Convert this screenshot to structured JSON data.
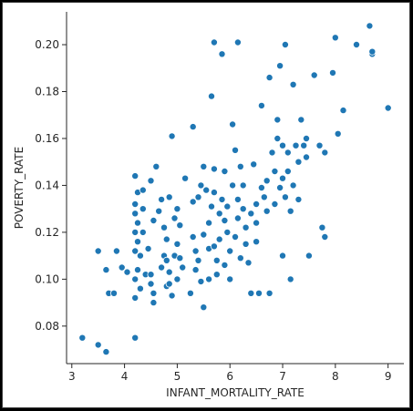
{
  "chart_data": {
    "type": "scatter",
    "title": "",
    "xlabel": "INFANT_MORTALITY_RATE",
    "ylabel": "POVERTY_RATE",
    "xlim": [
      2.9,
      9.3
    ],
    "ylim": [
      0.064,
      0.214
    ],
    "xticks": [
      3,
      4,
      5,
      6,
      7,
      8,
      9
    ],
    "yticks": [
      0.08,
      0.1,
      0.12,
      0.14,
      0.16,
      0.18,
      0.2
    ],
    "ytick_labels": [
      "0.08",
      "0.10",
      "0.12",
      "0.14",
      "0.16",
      "0.18",
      "0.20"
    ],
    "grid": false,
    "legend": "none",
    "color": "#1f77b4",
    "points": [
      [
        3.2,
        0.075
      ],
      [
        3.5,
        0.072
      ],
      [
        3.65,
        0.069
      ],
      [
        3.5,
        0.112
      ],
      [
        3.65,
        0.104
      ],
      [
        3.7,
        0.094
      ],
      [
        3.8,
        0.094
      ],
      [
        3.85,
        0.112
      ],
      [
        3.95,
        0.105
      ],
      [
        4.05,
        0.103
      ],
      [
        4.2,
        0.075
      ],
      [
        4.2,
        0.092
      ],
      [
        4.2,
        0.1
      ],
      [
        4.25,
        0.104
      ],
      [
        4.2,
        0.112
      ],
      [
        4.25,
        0.116
      ],
      [
        4.2,
        0.12
      ],
      [
        4.25,
        0.124
      ],
      [
        4.2,
        0.128
      ],
      [
        4.2,
        0.132
      ],
      [
        4.25,
        0.137
      ],
      [
        4.2,
        0.144
      ],
      [
        4.35,
        0.13
      ],
      [
        4.35,
        0.138
      ],
      [
        4.3,
        0.11
      ],
      [
        4.35,
        0.12
      ],
      [
        4.3,
        0.096
      ],
      [
        4.4,
        0.102
      ],
      [
        4.5,
        0.098
      ],
      [
        4.45,
        0.113
      ],
      [
        4.55,
        0.094
      ],
      [
        4.55,
        0.09
      ],
      [
        4.5,
        0.102
      ],
      [
        4.55,
        0.125
      ],
      [
        4.5,
        0.142
      ],
      [
        4.6,
        0.148
      ],
      [
        4.65,
        0.129
      ],
      [
        4.7,
        0.105
      ],
      [
        4.7,
        0.134
      ],
      [
        4.75,
        0.122
      ],
      [
        4.75,
        0.11
      ],
      [
        4.8,
        0.097
      ],
      [
        4.8,
        0.108
      ],
      [
        4.85,
        0.103
      ],
      [
        4.8,
        0.117
      ],
      [
        4.85,
        0.098
      ],
      [
        4.9,
        0.093
      ],
      [
        4.85,
        0.135
      ],
      [
        4.9,
        0.161
      ],
      [
        4.95,
        0.11
      ],
      [
        5.0,
        0.13
      ],
      [
        5.0,
        0.115
      ],
      [
        4.95,
        0.126
      ],
      [
        5.05,
        0.109
      ],
      [
        5.1,
        0.105
      ],
      [
        5.0,
        0.1
      ],
      [
        5.05,
        0.123
      ],
      [
        5.15,
        0.143
      ],
      [
        5.25,
        0.094
      ],
      [
        5.3,
        0.165
      ],
      [
        5.3,
        0.118
      ],
      [
        5.35,
        0.104
      ],
      [
        5.3,
        0.133
      ],
      [
        5.35,
        0.112
      ],
      [
        5.4,
        0.135
      ],
      [
        5.4,
        0.108
      ],
      [
        5.45,
        0.14
      ],
      [
        5.45,
        0.099
      ],
      [
        5.5,
        0.148
      ],
      [
        5.5,
        0.119
      ],
      [
        5.5,
        0.088
      ],
      [
        5.55,
        0.138
      ],
      [
        5.6,
        0.113
      ],
      [
        5.6,
        0.1
      ],
      [
        5.6,
        0.124
      ],
      [
        5.65,
        0.178
      ],
      [
        5.65,
        0.131
      ],
      [
        5.7,
        0.201
      ],
      [
        5.7,
        0.147
      ],
      [
        5.7,
        0.137
      ],
      [
        5.7,
        0.114
      ],
      [
        5.75,
        0.108
      ],
      [
        5.75,
        0.102
      ],
      [
        5.8,
        0.128
      ],
      [
        5.8,
        0.117
      ],
      [
        5.85,
        0.196
      ],
      [
        5.85,
        0.134
      ],
      [
        5.9,
        0.125
      ],
      [
        5.9,
        0.146
      ],
      [
        5.9,
        0.106
      ],
      [
        5.95,
        0.12
      ],
      [
        5.95,
        0.131
      ],
      [
        6.0,
        0.112
      ],
      [
        6.0,
        0.1
      ],
      [
        6.05,
        0.166
      ],
      [
        6.05,
        0.14
      ],
      [
        6.1,
        0.155
      ],
      [
        6.1,
        0.118
      ],
      [
        6.15,
        0.201
      ],
      [
        6.15,
        0.126
      ],
      [
        6.15,
        0.134
      ],
      [
        6.2,
        0.109
      ],
      [
        6.2,
        0.148
      ],
      [
        6.25,
        0.14
      ],
      [
        6.25,
        0.13
      ],
      [
        6.3,
        0.122
      ],
      [
        6.3,
        0.115
      ],
      [
        6.35,
        0.107
      ],
      [
        6.4,
        0.094
      ],
      [
        6.4,
        0.128
      ],
      [
        6.45,
        0.149
      ],
      [
        6.5,
        0.132
      ],
      [
        6.5,
        0.124
      ],
      [
        6.5,
        0.116
      ],
      [
        6.55,
        0.094
      ],
      [
        6.6,
        0.174
      ],
      [
        6.6,
        0.139
      ],
      [
        6.65,
        0.135
      ],
      [
        6.7,
        0.142
      ],
      [
        6.7,
        0.129
      ],
      [
        6.75,
        0.186
      ],
      [
        6.75,
        0.094
      ],
      [
        6.8,
        0.154
      ],
      [
        6.85,
        0.146
      ],
      [
        6.85,
        0.132
      ],
      [
        6.9,
        0.168
      ],
      [
        6.9,
        0.16
      ],
      [
        6.95,
        0.191
      ],
      [
        6.95,
        0.139
      ],
      [
        7.0,
        0.157
      ],
      [
        7.0,
        0.143
      ],
      [
        7.0,
        0.11
      ],
      [
        7.05,
        0.2
      ],
      [
        7.05,
        0.135
      ],
      [
        7.1,
        0.154
      ],
      [
        7.1,
        0.146
      ],
      [
        7.15,
        0.129
      ],
      [
        7.15,
        0.1
      ],
      [
        7.2,
        0.183
      ],
      [
        7.2,
        0.14
      ],
      [
        7.25,
        0.157
      ],
      [
        7.3,
        0.15
      ],
      [
        7.3,
        0.134
      ],
      [
        7.35,
        0.168
      ],
      [
        7.4,
        0.157
      ],
      [
        7.45,
        0.16
      ],
      [
        7.45,
        0.152
      ],
      [
        7.5,
        0.11
      ],
      [
        7.6,
        0.187
      ],
      [
        7.7,
        0.157
      ],
      [
        7.75,
        0.122
      ],
      [
        7.8,
        0.118
      ],
      [
        7.8,
        0.154
      ],
      [
        7.95,
        0.188
      ],
      [
        8.0,
        0.203
      ],
      [
        8.05,
        0.162
      ],
      [
        8.15,
        0.172
      ],
      [
        8.4,
        0.2
      ],
      [
        8.65,
        0.208
      ],
      [
        8.7,
        0.196
      ],
      [
        8.7,
        0.197
      ],
      [
        9.0,
        0.173
      ]
    ]
  }
}
